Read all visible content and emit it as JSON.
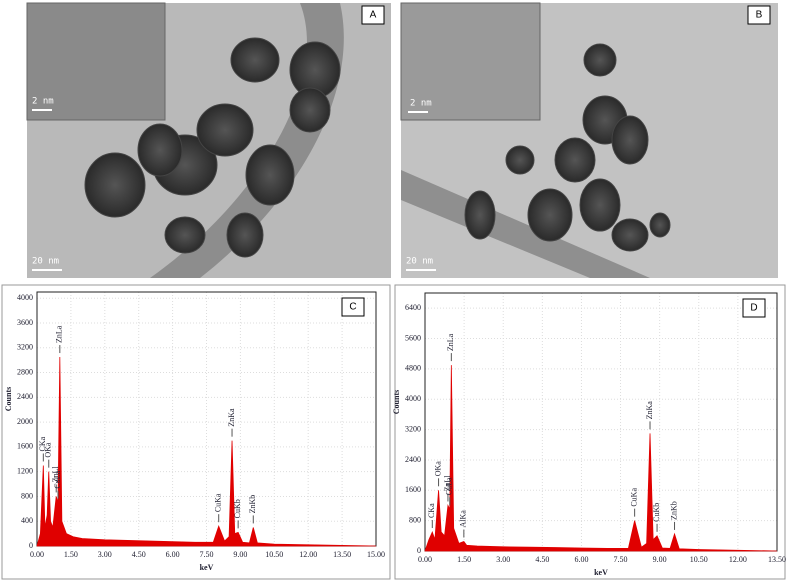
{
  "images": [
    {
      "label": "A",
      "inset_scale": "2 nm",
      "scale": "20 nm"
    },
    {
      "label": "B",
      "inset_scale": "2 nm",
      "scale": "20 nm"
    }
  ],
  "chart_data": [
    {
      "type": "area",
      "panel": "C",
      "x_label": "keV",
      "y_label": "Counts",
      "color": "#e00000",
      "x": [
        0,
        0.15,
        0.28,
        0.35,
        0.45,
        0.52,
        0.6,
        0.7,
        0.85,
        0.93,
        1.01,
        1.1,
        1.3,
        1.6,
        2,
        3,
        4,
        5,
        6,
        7,
        7.8,
        8.04,
        8.3,
        8.5,
        8.63,
        8.75,
        8.9,
        9.1,
        9.4,
        9.57,
        9.75,
        10.5,
        12,
        13.5,
        15
      ],
      "values": [
        0,
        200,
        1300,
        300,
        500,
        1200,
        400,
        300,
        800,
        700,
        3050,
        400,
        200,
        150,
        120,
        100,
        90,
        80,
        70,
        60,
        60,
        320,
        80,
        150,
        1700,
        200,
        220,
        60,
        50,
        300,
        50,
        30,
        20,
        10,
        0
      ],
      "xlim": [
        0,
        15
      ],
      "ylim": [
        0,
        4100
      ],
      "xticks": [
        {
          "value": 0,
          "label": "0.00"
        },
        {
          "value": 1.5,
          "label": "1.50"
        },
        {
          "value": 3,
          "label": "3.00"
        },
        {
          "value": 4.5,
          "label": "4.50"
        },
        {
          "value": 6,
          "label": "6.00"
        },
        {
          "value": 7.5,
          "label": "7.50"
        },
        {
          "value": 9,
          "label": "9.00"
        },
        {
          "value": 10.5,
          "label": "10.50"
        },
        {
          "value": 12,
          "label": "12.00"
        },
        {
          "value": 13.5,
          "label": "13.50"
        },
        {
          "value": 15,
          "label": "15.00"
        }
      ],
      "yticks": [
        0,
        400,
        800,
        1200,
        1600,
        2000,
        2400,
        2800,
        3200,
        3600,
        4000
      ],
      "grid": true,
      "annotations": [
        {
          "text": "CKa",
          "x": 0.28
        },
        {
          "text": "OKa",
          "x": 0.52
        },
        {
          "text": "ZnLl",
          "x": 0.85
        },
        {
          "text": "CuLa",
          "x": 0.93
        },
        {
          "text": "ZnLa",
          "x": 1.01
        },
        {
          "text": "CuKa",
          "x": 8.04
        },
        {
          "text": "ZnKa",
          "x": 8.63
        },
        {
          "text": "CuKb",
          "x": 8.9
        },
        {
          "text": "ZnKb",
          "x": 9.57
        }
      ]
    },
    {
      "type": "area",
      "panel": "D",
      "x_label": "keV",
      "y_label": "Counts",
      "color": "#e00000",
      "x": [
        0,
        0.15,
        0.28,
        0.38,
        0.52,
        0.62,
        0.75,
        0.88,
        0.95,
        1.01,
        1.1,
        1.3,
        1.49,
        1.6,
        2,
        3,
        4,
        5,
        6,
        7,
        7.8,
        8.04,
        8.3,
        8.5,
        8.63,
        8.75,
        8.9,
        9.1,
        9.4,
        9.57,
        9.75,
        10.5,
        12,
        13.5
      ],
      "values": [
        0,
        300,
        500,
        300,
        1600,
        500,
        400,
        1200,
        1100,
        4900,
        600,
        200,
        250,
        150,
        130,
        110,
        100,
        90,
        80,
        70,
        70,
        800,
        100,
        200,
        3100,
        300,
        400,
        80,
        70,
        450,
        60,
        40,
        20,
        0
      ],
      "xlim": [
        0,
        13.5
      ],
      "ylim": [
        0,
        6800
      ],
      "xticks": [
        {
          "value": 0,
          "label": "0.00"
        },
        {
          "value": 1.5,
          "label": "1.50"
        },
        {
          "value": 3,
          "label": "3.00"
        },
        {
          "value": 4.5,
          "label": "4.50"
        },
        {
          "value": 6,
          "label": "6.00"
        },
        {
          "value": 7.5,
          "label": "7.50"
        },
        {
          "value": 9,
          "label": "9.00"
        },
        {
          "value": 10.5,
          "label": "10.50"
        },
        {
          "value": 12,
          "label": "12.00"
        },
        {
          "value": 13.5,
          "label": "13.50"
        }
      ],
      "yticks": [
        0,
        800,
        1600,
        2400,
        3200,
        4000,
        4800,
        5600,
        6400
      ],
      "grid": true,
      "annotations": [
        {
          "text": "CKa",
          "x": 0.28
        },
        {
          "text": "OKa",
          "x": 0.52
        },
        {
          "text": "ZnLl",
          "x": 0.88
        },
        {
          "text": "CuLa",
          "x": 0.95
        },
        {
          "text": "ZnLa",
          "x": 1.01
        },
        {
          "text": "AlKa",
          "x": 1.49
        },
        {
          "text": "CuKa",
          "x": 8.04
        },
        {
          "text": "ZnKa",
          "x": 8.63
        },
        {
          "text": "CuKb",
          "x": 8.9
        },
        {
          "text": "ZnKb",
          "x": 9.57
        }
      ]
    }
  ]
}
